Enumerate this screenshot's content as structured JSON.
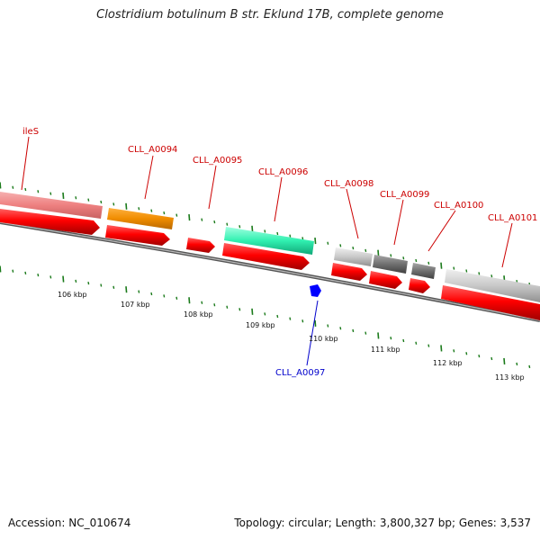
{
  "title": "Clostridium botulinum B str. Eklund 17B, complete genome",
  "accession": "Accession: NC_010674",
  "summary": "Topology: circular; Length: 3,800,327 bp; Genes: 3,537",
  "colors": {
    "gene_label": "#cc0000",
    "reverse_label": "#0000cc",
    "cds_forward": "#ff0000",
    "tick": "#1a7a1a",
    "backbone": "#777777"
  },
  "genes_forward": [
    {
      "label": "ileS"
    },
    {
      "label": "CLL_A0094"
    },
    {
      "label": "CLL_A0095"
    },
    {
      "label": "CLL_A0096"
    },
    {
      "label": "CLL_A0098"
    },
    {
      "label": "CLL_A0099"
    },
    {
      "label": "CLL_A0100"
    },
    {
      "label": "CLL_A0101"
    }
  ],
  "genes_reverse": [
    {
      "label": "CLL_A0097"
    }
  ],
  "scale_labels": [
    "106 kbp",
    "107 kbp",
    "108 kbp",
    "109 kbp",
    "110 kbp",
    "111 kbp",
    "112 kbp",
    "113 kbp"
  ]
}
